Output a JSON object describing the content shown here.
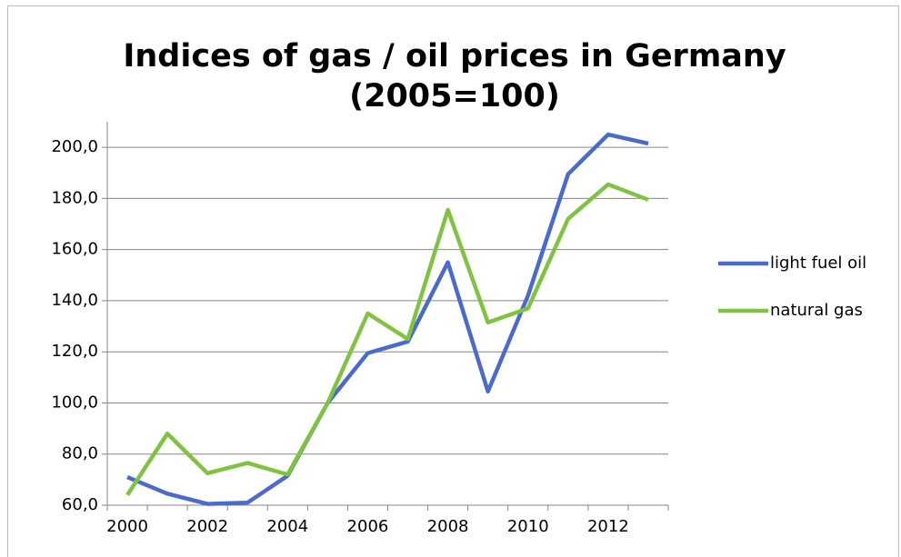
{
  "chart_data": {
    "type": "line",
    "title": [
      "Indices of gas / oil prices in Germany",
      "(2005=100)"
    ],
    "categories": [
      "2000",
      null,
      "2002",
      null,
      "2004",
      null,
      "2006",
      null,
      "2008",
      null,
      "2010",
      null,
      "2012",
      null
    ],
    "series": [
      {
        "name": "light fuel oil",
        "color": "#4a6bcc",
        "values": [
          71,
          64.5,
          60.5,
          61,
          71.5,
          100,
          119.5,
          124,
          155,
          104.5,
          142,
          189.5,
          205,
          201.5
        ]
      },
      {
        "name": "natural gas",
        "color": "#80c342",
        "values": [
          64,
          88,
          72.5,
          76.5,
          72,
          100,
          135,
          125,
          175.5,
          131.5,
          137,
          172,
          185.5,
          179.5
        ]
      }
    ],
    "ylim": [
      60,
      210
    ],
    "yticks": [
      {
        "value": 60,
        "label": "60,0"
      },
      {
        "value": 80,
        "label": "80,0"
      },
      {
        "value": 100,
        "label": "100,0"
      },
      {
        "value": 120,
        "label": "120,0"
      },
      {
        "value": 140,
        "label": "140,0"
      },
      {
        "value": 160,
        "label": "160,0"
      },
      {
        "value": 180,
        "label": "180,0"
      },
      {
        "value": 200,
        "label": "200,0"
      }
    ],
    "grid": true,
    "legend": "right"
  }
}
